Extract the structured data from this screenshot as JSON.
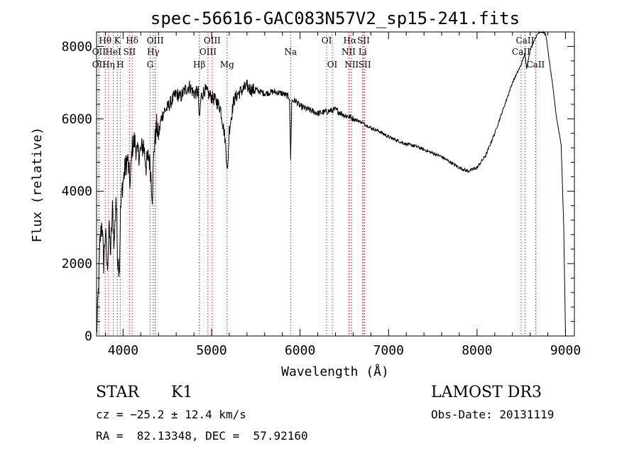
{
  "chart_data": {
    "type": "line",
    "title": "spec-56616-GAC083N57V2_sp15-241.fits",
    "xlabel": "Wavelength (Å)",
    "ylabel": "Flux (relative)",
    "xlim": [
      3700,
      9100
    ],
    "ylim": [
      0,
      8400
    ],
    "x_ticks": [
      4000,
      5000,
      6000,
      7000,
      8000,
      9000
    ],
    "y_ticks": [
      0,
      2000,
      4000,
      6000,
      8000
    ],
    "x_minor_step": 200,
    "y_minor_step": 400,
    "series": [
      {
        "name": "spectrum",
        "color": "#000000",
        "x": [
          3700,
          3720,
          3740,
          3760,
          3780,
          3800,
          3820,
          3840,
          3860,
          3880,
          3900,
          3920,
          3940,
          3960,
          3970,
          3990,
          4020,
          4050,
          4080,
          4100,
          4130,
          4160,
          4200,
          4230,
          4260,
          4290,
          4310,
          4330,
          4350,
          4380,
          4400,
          4430,
          4460,
          4500,
          4550,
          4600,
          4650,
          4700,
          4750,
          4800,
          4850,
          4861,
          4880,
          4920,
          4960,
          5000,
          5050,
          5100,
          5150,
          5170,
          5180,
          5200,
          5250,
          5300,
          5350,
          5400,
          5450,
          5500,
          5600,
          5700,
          5800,
          5880,
          5893,
          5906,
          5950,
          6000,
          6050,
          6100,
          6150,
          6200,
          6300,
          6400,
          6500,
          6563,
          6600,
          6700,
          6800,
          6900,
          7000,
          7100,
          7200,
          7300,
          7400,
          7500,
          7600,
          7700,
          7800,
          7900,
          7950,
          8000,
          8100,
          8200,
          8300,
          8400,
          8500,
          8540,
          8560,
          8600,
          8650,
          8700,
          8750,
          8780,
          8800,
          8850,
          8900,
          8950,
          8980,
          9000
        ],
        "y": [
          0,
          1200,
          2600,
          3200,
          2000,
          2900,
          1800,
          3000,
          2300,
          3500,
          2500,
          3900,
          2100,
          1900,
          3400,
          4100,
          4600,
          4900,
          4200,
          5200,
          5400,
          5000,
          5100,
          5300,
          4700,
          5000,
          4600,
          3900,
          5200,
          5800,
          5500,
          6000,
          6200,
          6300,
          6500,
          6700,
          6600,
          6800,
          6900,
          6700,
          6750,
          5900,
          6600,
          6800,
          6700,
          6600,
          6500,
          6300,
          5500,
          4900,
          4500,
          5700,
          6500,
          6700,
          6800,
          6900,
          6800,
          6800,
          6700,
          6750,
          6700,
          6600,
          4900,
          6500,
          6500,
          6350,
          6300,
          6250,
          6200,
          6150,
          6200,
          6250,
          6100,
          6050,
          6000,
          5900,
          5750,
          5650,
          5500,
          5400,
          5300,
          5250,
          5150,
          5050,
          4950,
          4800,
          4650,
          4550,
          4600,
          4650,
          5000,
          5600,
          6300,
          7000,
          7500,
          7800,
          7400,
          7900,
          8200,
          8400,
          8400,
          8300,
          7900,
          7000,
          6000,
          5300,
          3000,
          0
        ]
      }
    ],
    "line_markers": [
      {
        "label": "Hθ",
        "wl": 3798,
        "row": 1
      },
      {
        "label": "OII",
        "wl": 3727,
        "row": 2
      },
      {
        "label": "OII",
        "wl": 3727,
        "row": 3
      },
      {
        "label": "Hη",
        "wl": 3835,
        "row": 3
      },
      {
        "label": "HeI",
        "wl": 3889,
        "row": 2
      },
      {
        "label": "K",
        "wl": 3934,
        "row": 1
      },
      {
        "label": "H",
        "wl": 3968,
        "row": 3
      },
      {
        "label": "SII",
        "wl": 4072,
        "row": 2
      },
      {
        "label": "Hδ",
        "wl": 4102,
        "row": 1
      },
      {
        "label": "OIII",
        "wl": 4363,
        "row": 1
      },
      {
        "label": "Hγ",
        "wl": 4340,
        "row": 2
      },
      {
        "label": "G",
        "wl": 4305,
        "row": 3
      },
      {
        "label": "Hβ",
        "wl": 4861,
        "row": 3
      },
      {
        "label": "OIII",
        "wl": 5007,
        "row": 1
      },
      {
        "label": "OIII",
        "wl": 4959,
        "row": 2
      },
      {
        "label": "Mg",
        "wl": 5175,
        "row": 3
      },
      {
        "label": "Na",
        "wl": 5893,
        "row": 2
      },
      {
        "label": "OI",
        "wl": 6300,
        "row": 1
      },
      {
        "label": "OI",
        "wl": 6364,
        "row": 3
      },
      {
        "label": "Hα",
        "wl": 6563,
        "row": 1
      },
      {
        "label": "NII",
        "wl": 6548,
        "row": 2
      },
      {
        "label": "NII",
        "wl": 6583,
        "row": 3
      },
      {
        "label": "SII",
        "wl": 6717,
        "row": 1
      },
      {
        "label": "Li",
        "wl": 6707,
        "row": 2
      },
      {
        "label": "SII",
        "wl": 6731,
        "row": 3
      },
      {
        "label": "CaII",
        "wl": 8542,
        "row": 1
      },
      {
        "label": "CaII",
        "wl": 8498,
        "row": 2
      },
      {
        "label": "CaII",
        "wl": 8662,
        "row": 3
      }
    ]
  },
  "info": {
    "class_label": "STAR",
    "subclass": "K1",
    "survey": "LAMOST DR3",
    "cz": "cz = −25.2 ± 12.4 km/s",
    "obs_date": "Obs-Date: 20131119",
    "coords": "RA =  82.13348, DEC =  57.92160"
  }
}
